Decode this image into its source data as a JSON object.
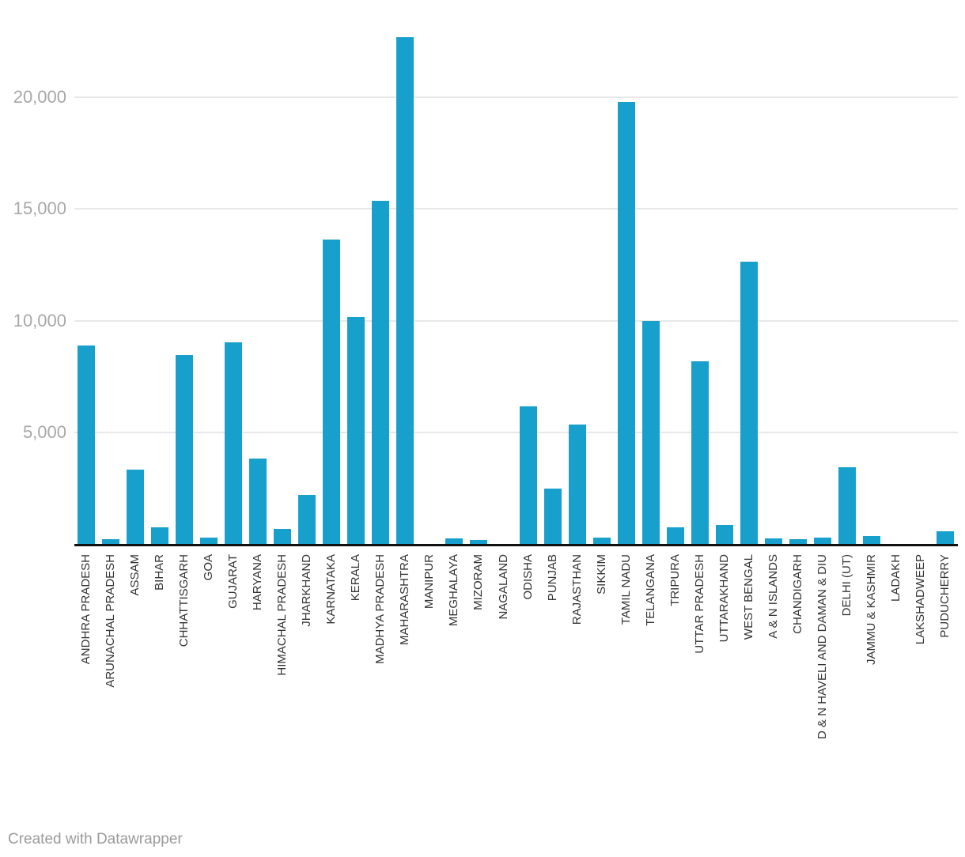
{
  "chart_data": {
    "type": "bar",
    "title": "",
    "xlabel": "",
    "ylabel": "",
    "grid": true,
    "legend_position": "none",
    "ylim": [
      0,
      23000
    ],
    "y_ticks": [
      {
        "value": 5000,
        "label": "5,000"
      },
      {
        "value": 10000,
        "label": "10,000"
      },
      {
        "value": 15000,
        "label": "15,000"
      },
      {
        "value": 20000,
        "label": "20,000"
      }
    ],
    "categories": [
      "ANDHRA PRADESH",
      "ARUNACHAL PRADESH",
      "ASSAM",
      "BIHAR",
      "CHHATTISGARH",
      "GOA",
      "GUJARAT",
      "HARYANA",
      "HIMACHAL PRADESH",
      "JHARKHAND",
      "KARNATAKA",
      "KERALA",
      "MADHYA PRADESH",
      "MAHARASHTRA",
      "MANIPUR",
      "MEGHALAYA",
      "MIZORAM",
      "NAGALAND",
      "ODISHA",
      "PUNJAB",
      "RAJASTHAN",
      "SIKKIM",
      "TAMIL NADU",
      "TELANGANA",
      "TRIPURA",
      "UTTAR PRADESH",
      "UTTARAKHAND",
      "WEST BENGAL",
      "A & N ISLANDS",
      "CHANDIGARH",
      "D & N HAVELI AND DAMAN & DIU",
      "DELHI (UT)",
      "JAMMU & KASHMIR",
      "LADAKH",
      "LAKSHADWEEP",
      "PUDUCHERRY"
    ],
    "values": [
      8900,
      200,
      3330,
      730,
      8460,
      290,
      9030,
      3820,
      670,
      2200,
      13630,
      10160,
      15370,
      22700,
      0,
      250,
      170,
      0,
      6160,
      2480,
      5350,
      300,
      19800,
      10000,
      740,
      8180,
      850,
      12640,
      260,
      200,
      270,
      3440,
      350,
      0,
      0,
      550
    ]
  },
  "colors": {
    "bar": "#18a0cd",
    "grid": "#e8e8e8",
    "axis": "#101010",
    "y_tick_text": "#a8a8a8",
    "x_label_text": "#333333",
    "credit_text": "#9b9b9b"
  },
  "footer": {
    "credit": "Created with Datawrapper"
  }
}
